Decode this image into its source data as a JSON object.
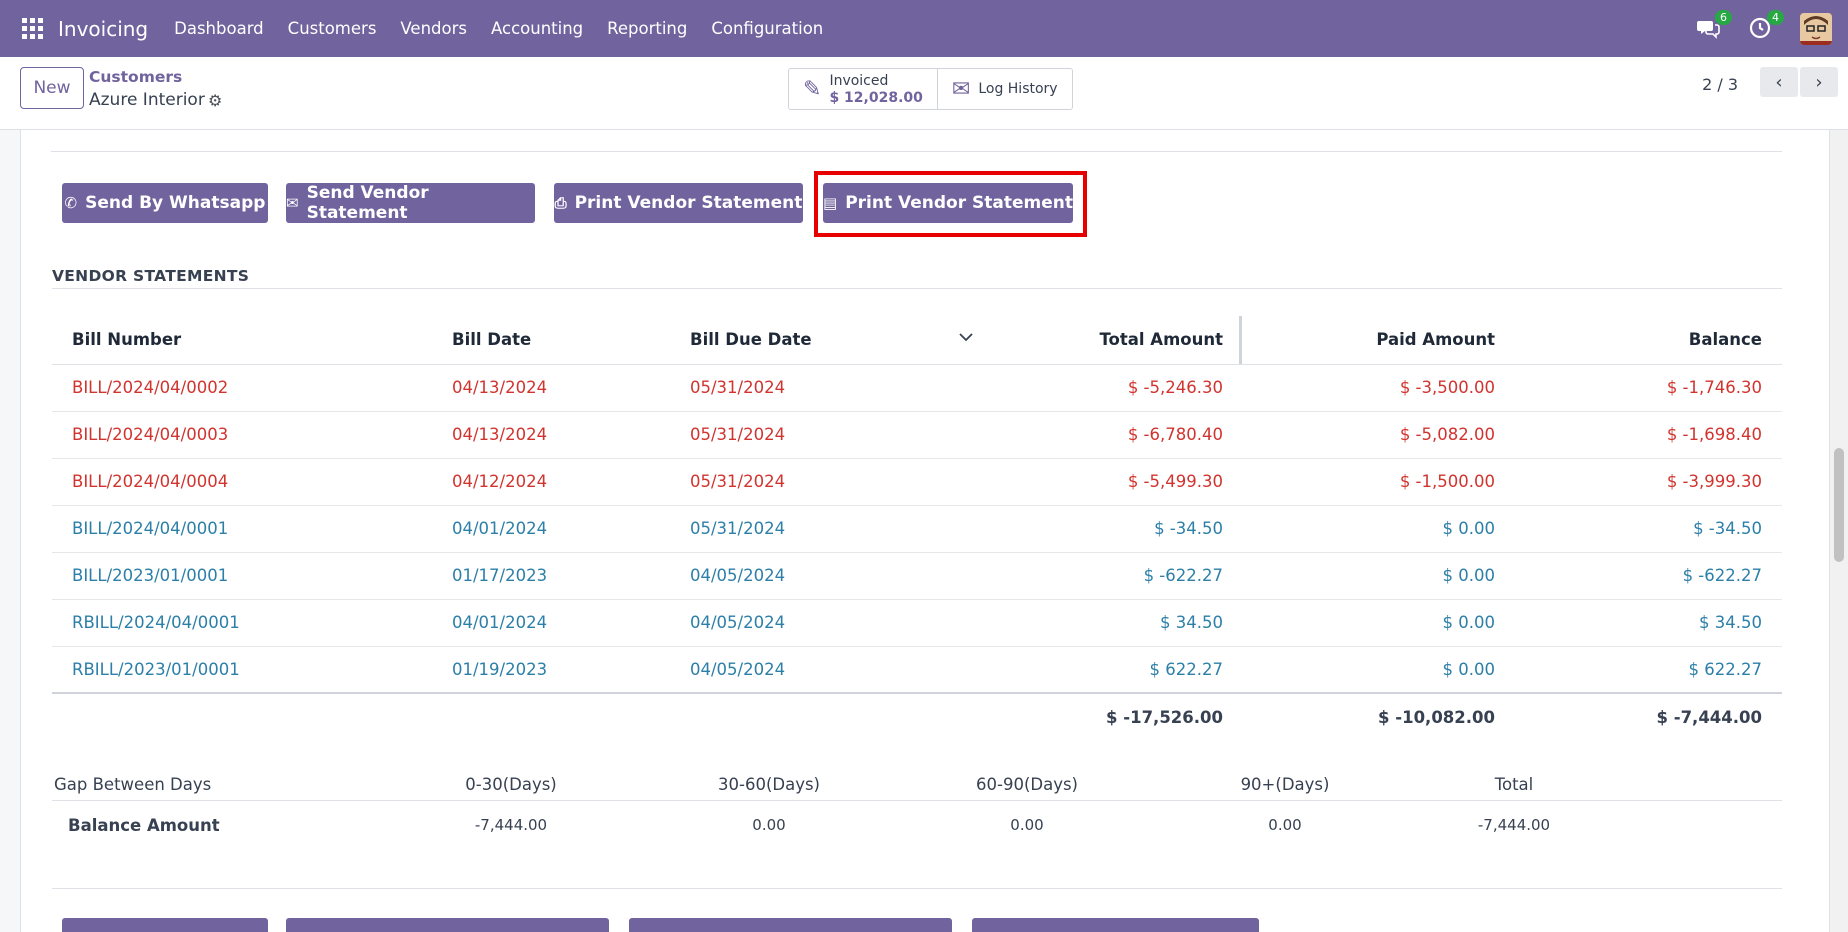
{
  "navbar": {
    "app_name": "Invoicing",
    "menu": [
      "Dashboard",
      "Customers",
      "Vendors",
      "Accounting",
      "Reporting",
      "Configuration"
    ],
    "messages_badge": "6",
    "activities_badge": "4",
    "color": "#71639e"
  },
  "control": {
    "new_label": "New",
    "breadcrumb_parent": "Customers",
    "record_name": "Azure Interior",
    "smart_invoiced_label": "Invoiced",
    "smart_invoiced_value": "$ 12,028.00",
    "smart_log_label": "Log History",
    "pager": "2 / 3"
  },
  "actions": {
    "whatsapp": "Send By Whatsapp",
    "send_statement": "Send Vendor Statement",
    "print_statement": "Print Vendor Statement",
    "print_statement_xls": "Print Vendor Statement"
  },
  "statements": {
    "title": "VENDOR STATEMENTS",
    "headers": [
      "Bill Number",
      "Bill Date",
      "Bill Due Date",
      "Total Amount",
      "Paid Amount",
      "Balance"
    ],
    "rows": [
      {
        "bill": "BILL/2024/04/0002",
        "date": "04/13/2024",
        "due": "05/31/2024",
        "total": "$ -5,246.30",
        "paid": "$ -3,500.00",
        "balance": "$ -1,746.30",
        "status": "overdue"
      },
      {
        "bill": "BILL/2024/04/0003",
        "date": "04/13/2024",
        "due": "05/31/2024",
        "total": "$ -6,780.40",
        "paid": "$ -5,082.00",
        "balance": "$ -1,698.40",
        "status": "overdue"
      },
      {
        "bill": "BILL/2024/04/0004",
        "date": "04/12/2024",
        "due": "05/31/2024",
        "total": "$ -5,499.30",
        "paid": "$ -1,500.00",
        "balance": "$ -3,999.30",
        "status": "overdue"
      },
      {
        "bill": "BILL/2024/04/0001",
        "date": "04/01/2024",
        "due": "05/31/2024",
        "total": "$ -34.50",
        "paid": "$ 0.00",
        "balance": "$ -34.50",
        "status": "open"
      },
      {
        "bill": "BILL/2023/01/0001",
        "date": "01/17/2023",
        "due": "04/05/2024",
        "total": "$ -622.27",
        "paid": "$ 0.00",
        "balance": "$ -622.27",
        "status": "open"
      },
      {
        "bill": "RBILL/2024/04/0001",
        "date": "04/01/2024",
        "due": "04/05/2024",
        "total": "$ 34.50",
        "paid": "$ 0.00",
        "balance": "$ 34.50",
        "status": "open"
      },
      {
        "bill": "RBILL/2023/01/0001",
        "date": "01/19/2023",
        "due": "04/05/2024",
        "total": "$ 622.27",
        "paid": "$ 0.00",
        "balance": "$ 622.27",
        "status": "open"
      }
    ],
    "totals": {
      "total": "$ -17,526.00",
      "paid": "$ -10,082.00",
      "balance": "$ -7,444.00"
    }
  },
  "gap": {
    "headers": [
      "Gap Between Days",
      "0-30(Days)",
      "30-60(Days)",
      "60-90(Days)",
      "90+(Days)",
      "Total"
    ],
    "row_label": "Balance Amount",
    "values": [
      "-7,444.00",
      "0.00",
      "0.00",
      "0.00",
      "-7,444.00"
    ]
  }
}
